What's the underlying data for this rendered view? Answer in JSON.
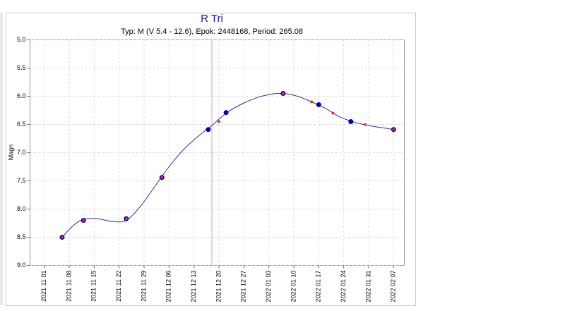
{
  "chart_data": {
    "type": "line",
    "title": "R Tri",
    "subtitle": "Typ: M (V 5.4 - 12.6), Epok: 2448168, Period: 265.08",
    "y_label": "Magn",
    "y_inverted": true,
    "grid": true,
    "xlim": [
      "2021 10 28",
      "2022 02 10"
    ],
    "xticks": [
      "2021 11 01",
      "2021 11 08",
      "2021 11 15",
      "2021 11 22",
      "2021 11 29",
      "2021 12 06",
      "2021 12 13",
      "2021 12 20",
      "2021 12 27",
      "2022 01 03",
      "2022 01 10",
      "2022 01 17",
      "2022 01 24",
      "2022 01 31",
      "2022 02 07"
    ],
    "ylim": [
      5,
      9
    ],
    "yticks": [
      {
        "value": 5,
        "label": "5.0"
      },
      {
        "value": 5.5,
        "label": "5.5"
      },
      {
        "value": 6,
        "label": "6.0"
      },
      {
        "value": 6.5,
        "label": "6.5"
      },
      {
        "value": 7,
        "label": "7.0"
      },
      {
        "value": 7.5,
        "label": "7.5"
      },
      {
        "value": 8,
        "label": "8.0"
      },
      {
        "value": 8.5,
        "label": "8.5"
      },
      {
        "value": 9,
        "label": "9.0"
      }
    ],
    "marker_x": "2021 12 18",
    "marker_color": "#f0a0a0",
    "series": [
      {
        "kind": "scatter",
        "color": "#0000b0",
        "size": 3.5,
        "x": [
          "2021 11 06",
          "2021 11 12",
          "2021 11 24",
          "2021 12 04",
          "2021 12 17",
          "2021 12 22",
          "2022 01 07",
          "2022 01 17",
          "2022 01 26",
          "2022 02 07"
        ],
        "values": [
          8.5,
          8.2,
          8.17,
          7.44,
          6.59,
          6.29,
          5.95,
          6.15,
          6.45,
          6.59
        ]
      },
      {
        "kind": "scatter",
        "color": "#e03030",
        "size": 2,
        "x": [
          "2021 11 06",
          "2021 11 12",
          "2021 11 24",
          "2021 12 04",
          "2021 12 20",
          "2022 01 07",
          "2022 01 15",
          "2022 01 21",
          "2022 01 30",
          "2022 02 07"
        ],
        "values": [
          8.5,
          8.2,
          8.17,
          7.44,
          6.45,
          5.95,
          6.1,
          6.3,
          6.5,
          6.59
        ]
      },
      {
        "kind": "line",
        "color": "#303090",
        "x": [
          "2021 11 06",
          "2021 11 09",
          "2021 11 12",
          "2021 11 16",
          "2021 11 20",
          "2021 11 24",
          "2021 11 28",
          "2021 12 02",
          "2021 12 06",
          "2021 12 10",
          "2021 12 14",
          "2021 12 18",
          "2021 12 22",
          "2021 12 26",
          "2021 12 30",
          "2022 01 03",
          "2022 01 07",
          "2022 01 11",
          "2022 01 15",
          "2022 01 19",
          "2022 01 23",
          "2022 01 27",
          "2022 01 31",
          "2022 02 04",
          "2022 02 07"
        ],
        "values": [
          8.5,
          8.3,
          8.18,
          8.17,
          8.22,
          8.2,
          7.95,
          7.6,
          7.25,
          6.95,
          6.72,
          6.52,
          6.3,
          6.15,
          6.04,
          5.97,
          5.95,
          6.0,
          6.1,
          6.22,
          6.37,
          6.46,
          6.52,
          6.56,
          6.59
        ]
      }
    ]
  }
}
